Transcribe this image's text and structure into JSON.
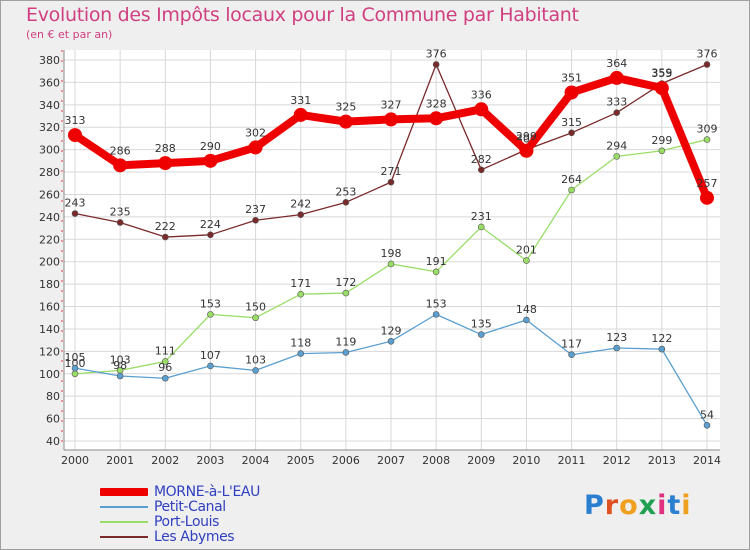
{
  "brand": "Proxiti",
  "chart_data": {
    "type": "line",
    "title": "Evolution des Impôts locaux pour la Commune par Habitant",
    "subtitle": "(en € et par an)",
    "xlabel": "",
    "ylabel": "",
    "categories": [
      "2000",
      "2001",
      "2002",
      "2003",
      "2004",
      "2005",
      "2006",
      "2007",
      "2008",
      "2009",
      "2010",
      "2011",
      "2012",
      "2013",
      "2014"
    ],
    "ylim": [
      40,
      380
    ],
    "yticks": [
      40,
      60,
      80,
      100,
      120,
      140,
      160,
      180,
      200,
      220,
      240,
      260,
      280,
      300,
      320,
      340,
      360,
      380
    ],
    "grid": true,
    "legend_position": "bottom-left",
    "series": [
      {
        "name": "MORNE-à-L'EAU",
        "color": "#ee0000",
        "values": [
          313,
          286,
          288,
          290,
          302,
          331,
          325,
          327,
          328,
          336,
          299,
          351,
          364,
          355,
          257
        ]
      },
      {
        "name": "Petit-Canal",
        "color": "#5a9fd0",
        "values": [
          105,
          98,
          96,
          107,
          103,
          118,
          119,
          129,
          153,
          135,
          148,
          117,
          123,
          122,
          54
        ]
      },
      {
        "name": "Port-Louis",
        "color": "#99dd66",
        "values": [
          100,
          103,
          111,
          153,
          150,
          171,
          172,
          198,
          191,
          231,
          201,
          264,
          294,
          299,
          309
        ]
      },
      {
        "name": "Les Abymes",
        "color": "#7a2a2a",
        "values": [
          243,
          235,
          222,
          224,
          237,
          242,
          253,
          271,
          376,
          282,
          300,
          315,
          333,
          359,
          376
        ]
      }
    ]
  }
}
